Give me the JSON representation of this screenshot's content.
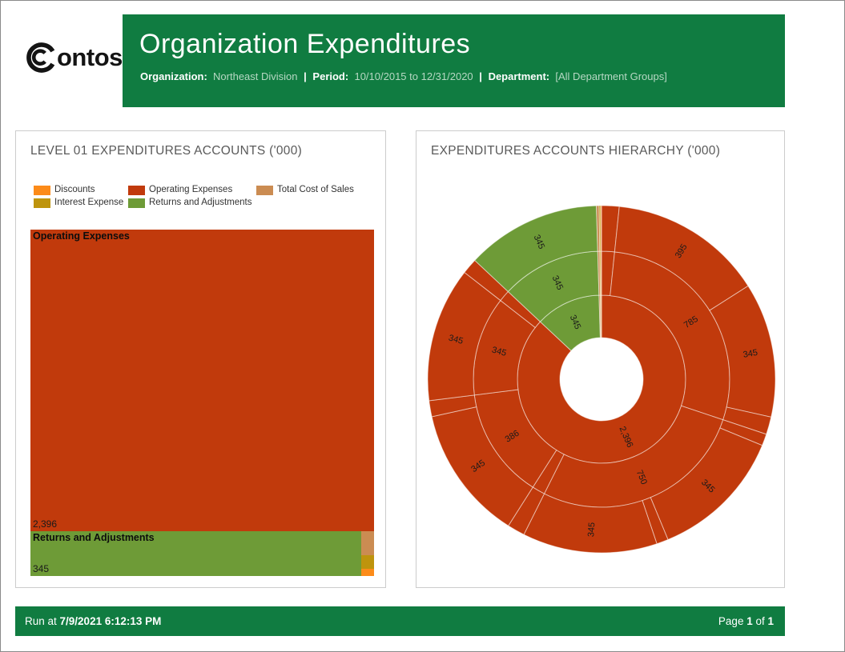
{
  "header": {
    "logo_text": "ontoso",
    "title": "Organization Expenditures",
    "meta": [
      {
        "label": "Organization:",
        "value": "Northeast Division"
      },
      {
        "label": "Period:",
        "value": "10/10/2015 to 12/31/2020"
      },
      {
        "label": "Department:",
        "value": "[All Department Groups]"
      }
    ],
    "separator": "|"
  },
  "colors": {
    "header_green": "#107C41",
    "discounts": "#FC8B19",
    "interest": "#BE940D",
    "operating": "#C13A0C",
    "returns": "#6E9B37",
    "total_cost": "#CB8C52",
    "label_dark": "#1a1a1a",
    "panel_border": "#cccccc"
  },
  "footer": {
    "run_prefix": "Run at ",
    "run_datetime": "7/9/2021 6:12:13 PM",
    "page_prefix": "Page ",
    "page_number": "1",
    "page_of": " of ",
    "page_total": "1"
  },
  "treemap_panel": {
    "title": "LEVEL 01 EXPENDITURES ACCOUNTS ('000)"
  },
  "sunburst_panel": {
    "title": "EXPENDITURES ACCOUNTS HIERARCHY ('000)"
  },
  "chart_data": [
    {
      "type": "treemap",
      "title": "LEVEL 01 EXPENDITURES ACCOUNTS ('000)",
      "legend": [
        {
          "label": "Discounts",
          "color_key": "discounts"
        },
        {
          "label": "Interest Expense",
          "color_key": "interest"
        },
        {
          "label": "Operating Expenses",
          "color_key": "operating"
        },
        {
          "label": "Returns and Adjustments",
          "color_key": "returns"
        },
        {
          "label": "Total Cost of Sales",
          "color_key": "total_cost"
        }
      ],
      "items": [
        {
          "name": "Operating Expenses",
          "value": 2396,
          "value_label": "2,396",
          "show_labels": true,
          "color_key": "operating"
        },
        {
          "name": "Returns and Adjustments",
          "value": 345,
          "value_label": "345",
          "show_labels": true,
          "color_key": "returns"
        },
        {
          "name": "Total Cost of Sales",
          "value": 7,
          "color_key": "total_cost"
        },
        {
          "name": "Interest Expense",
          "value": 4,
          "color_key": "interest"
        },
        {
          "name": "Discounts",
          "value": 2,
          "color_key": "discounts"
        }
      ]
    },
    {
      "type": "sunburst",
      "title": "EXPENDITURES ACCOUNTS HIERARCHY ('000)",
      "rings": 3,
      "start_angle_deg": 0,
      "root": [
        {
          "name": "Operating Expenses",
          "value": 2396,
          "label": "2,396",
          "color_key": "operating",
          "children": [
            {
              "value": 45
            },
            {
              "value": 785,
              "label": "785",
              "children": [
                {
                  "value": 395,
                  "label": "395"
                },
                {
                  "value": 345,
                  "label": "345"
                },
                {
                  "value": 45
                }
              ]
            },
            {
              "value": 750,
              "label": "750",
              "children": [
                {
                  "value": 30
                },
                {
                  "value": 345,
                  "label": "345"
                },
                {
                  "value": 30
                },
                {
                  "value": 345,
                  "label": "345"
                }
              ]
            },
            {
              "value": 45
            },
            {
              "value": 386,
              "label": "386",
              "children": [
                {
                  "value": 345,
                  "label": "345"
                },
                {
                  "value": 41
                }
              ]
            },
            {
              "value": 345,
              "label": "345",
              "children": [
                {
                  "value": 345,
                  "label": "345"
                }
              ]
            },
            {
              "value": 40
            }
          ]
        },
        {
          "name": "Returns and Adjustments",
          "value": 345,
          "label": "345",
          "color_key": "returns",
          "children": [
            {
              "value": 345,
              "label": "345",
              "children": [
                {
                  "value": 345,
                  "label": "345"
                }
              ]
            }
          ]
        },
        {
          "name": "Total Cost of Sales",
          "value": 7,
          "color_key": "total_cost"
        },
        {
          "name": "Interest Expense",
          "value": 4,
          "color_key": "interest"
        },
        {
          "name": "Discounts",
          "value": 2,
          "color_key": "discounts"
        }
      ]
    }
  ]
}
